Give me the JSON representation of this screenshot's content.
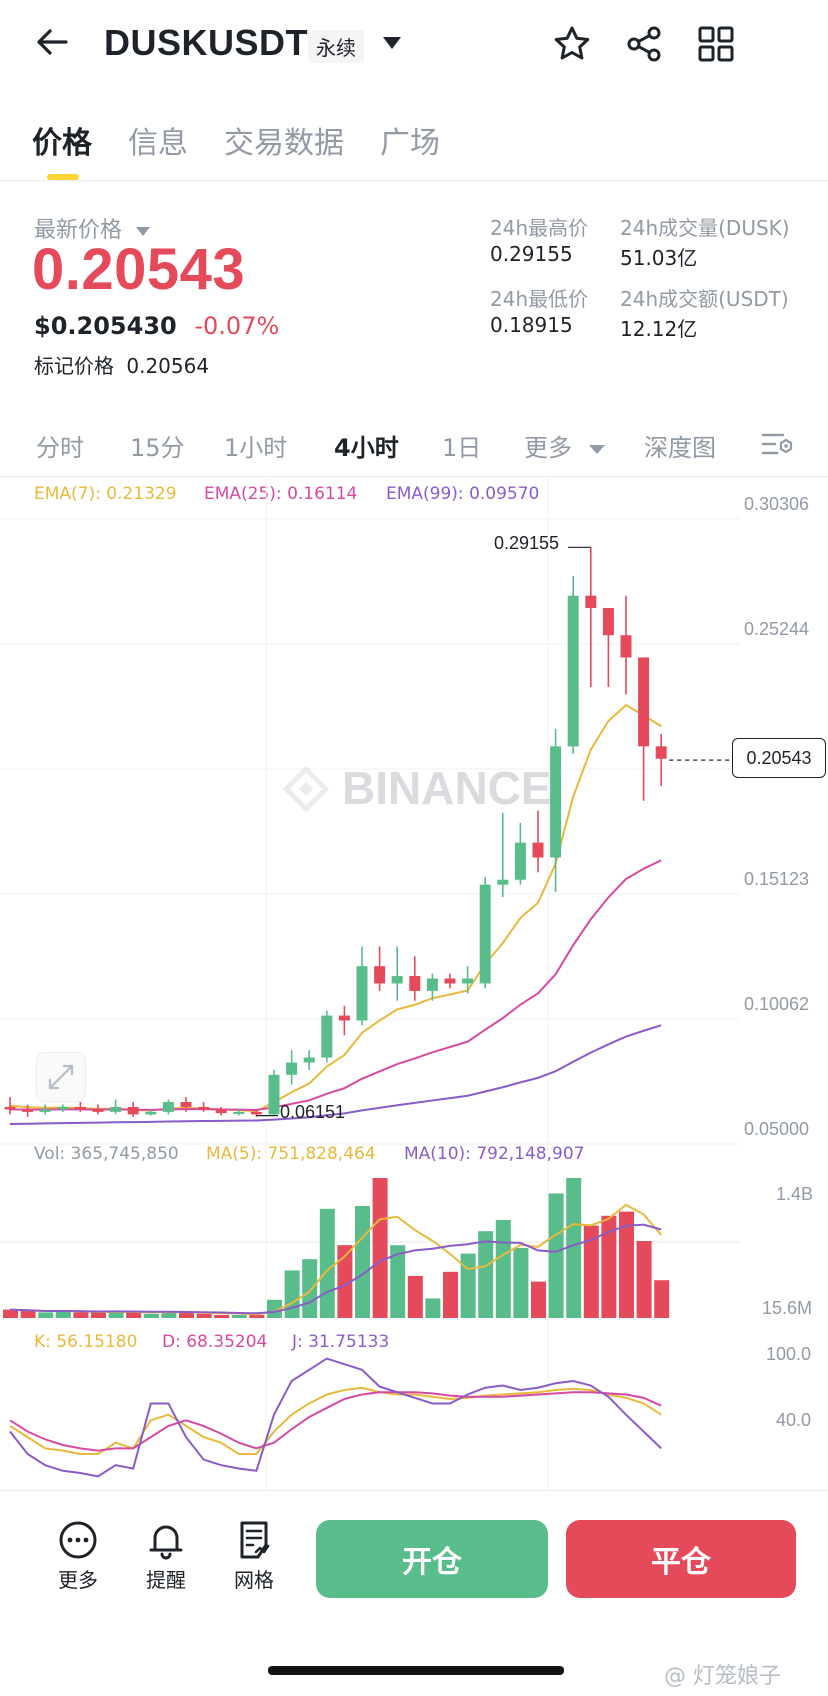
{
  "header": {
    "back_icon": "arrow-left-icon",
    "symbol": "DUSKUSDT",
    "contract_type": "永续",
    "dropdown_icon": "caret-down-icon",
    "actions": [
      "star-icon",
      "share-icon",
      "grid-icon"
    ]
  },
  "tabs": [
    {
      "label": "价格",
      "active": true
    },
    {
      "label": "信息",
      "active": false
    },
    {
      "label": "交易数据",
      "active": false
    },
    {
      "label": "广场",
      "active": false
    }
  ],
  "price": {
    "last_label": "最新价格",
    "last": "0.20543",
    "usd": "$0.205430",
    "change": "-0.07%",
    "mark_label": "标记价格",
    "mark": "0.20564",
    "high_label": "24h最高价",
    "high": "0.29155",
    "low_label": "24h最低价",
    "low": "0.18915",
    "vol_dusk_label": "24h成交量(DUSK)",
    "vol_dusk": "51.03亿",
    "vol_usdt_label": "24h成交额(USDT)",
    "vol_usdt": "12.12亿"
  },
  "intervals": {
    "items": [
      {
        "label": "分时",
        "active": false
      },
      {
        "label": "15分",
        "active": false
      },
      {
        "label": "1小时",
        "active": false
      },
      {
        "label": "4小时",
        "active": true
      },
      {
        "label": "1日",
        "active": false
      }
    ],
    "more": "更多",
    "depth": "深度图"
  },
  "chart": {
    "ema7": "EMA(7): 0.21329",
    "ema25": "EMA(25): 0.16114",
    "ema99": "EMA(99): 0.09570",
    "y_labels": [
      "0.30306",
      "0.25244",
      "0.15123",
      "0.10062",
      "0.05000"
    ],
    "current_price": "0.20543",
    "high_marker": "0.29155",
    "low_marker": "0.06151",
    "watermark": "BINANCE",
    "vol": "Vol: 365,745,850",
    "ma5": "MA(5): 751,828,464",
    "ma10": "MA(10): 792,148,907",
    "vol_axis": [
      "1.4B",
      "15.6M"
    ],
    "k": "K: 56.15180",
    "d": "D: 68.35204",
    "j": "J: 31.75133",
    "kdj_axis": [
      "100.0",
      "40.0"
    ],
    "colors": {
      "up": "#58bd8a",
      "down": "#e44a5a",
      "ema7": "#e8b93a",
      "ema25": "#d64aa3",
      "ema99": "#8a5cc8"
    }
  },
  "chart_data": {
    "type": "candlestick",
    "ylim": [
      0.05,
      0.30306
    ],
    "candles": [
      [
        0.065,
        0.069,
        0.062,
        0.064
      ],
      [
        0.064,
        0.066,
        0.061,
        0.063
      ],
      [
        0.063,
        0.066,
        0.062,
        0.064
      ],
      [
        0.064,
        0.066,
        0.063,
        0.065
      ],
      [
        0.065,
        0.067,
        0.063,
        0.064
      ],
      [
        0.064,
        0.066,
        0.062,
        0.063
      ],
      [
        0.063,
        0.068,
        0.062,
        0.065
      ],
      [
        0.065,
        0.067,
        0.061,
        0.062
      ],
      [
        0.062,
        0.064,
        0.0615,
        0.063
      ],
      [
        0.063,
        0.068,
        0.062,
        0.067
      ],
      [
        0.067,
        0.069,
        0.063,
        0.065
      ],
      [
        0.065,
        0.067,
        0.063,
        0.064
      ],
      [
        0.064,
        0.065,
        0.0615,
        0.0625
      ],
      [
        0.0625,
        0.064,
        0.0615,
        0.063
      ],
      [
        0.063,
        0.064,
        0.061,
        0.062
      ],
      [
        0.062,
        0.08,
        0.0615,
        0.078
      ],
      [
        0.078,
        0.088,
        0.074,
        0.083
      ],
      [
        0.083,
        0.088,
        0.08,
        0.085
      ],
      [
        0.085,
        0.104,
        0.083,
        0.102
      ],
      [
        0.102,
        0.106,
        0.094,
        0.1
      ],
      [
        0.1,
        0.13,
        0.098,
        0.122
      ],
      [
        0.122,
        0.13,
        0.112,
        0.115
      ],
      [
        0.115,
        0.13,
        0.108,
        0.118
      ],
      [
        0.118,
        0.126,
        0.108,
        0.112
      ],
      [
        0.112,
        0.119,
        0.108,
        0.117
      ],
      [
        0.117,
        0.119,
        0.113,
        0.115
      ],
      [
        0.115,
        0.122,
        0.111,
        0.117
      ],
      [
        0.115,
        0.158,
        0.113,
        0.155
      ],
      [
        0.155,
        0.184,
        0.15,
        0.157
      ],
      [
        0.157,
        0.18,
        0.155,
        0.172
      ],
      [
        0.172,
        0.185,
        0.16,
        0.166
      ],
      [
        0.166,
        0.218,
        0.152,
        0.211
      ],
      [
        0.211,
        0.28,
        0.208,
        0.272
      ],
      [
        0.272,
        0.2916,
        0.235,
        0.267
      ],
      [
        0.267,
        0.267,
        0.235,
        0.256
      ],
      [
        0.256,
        0.272,
        0.232,
        0.247
      ],
      [
        0.247,
        0.247,
        0.189,
        0.211
      ],
      [
        0.211,
        0.216,
        0.195,
        0.206
      ]
    ],
    "volume_axis": [
      "15.6M",
      "1.4B"
    ],
    "kdj_axis": [
      "40.0",
      "100.0"
    ]
  },
  "bottom": {
    "more": {
      "icon": "more-icon",
      "label": "更多"
    },
    "alert": {
      "icon": "bell-icon",
      "label": "提醒"
    },
    "grid": {
      "icon": "grid-list-icon",
      "label": "网格"
    },
    "open_label": "开仓",
    "close_label": "平仓"
  },
  "watermark_text": "@ 灯笼娘子"
}
